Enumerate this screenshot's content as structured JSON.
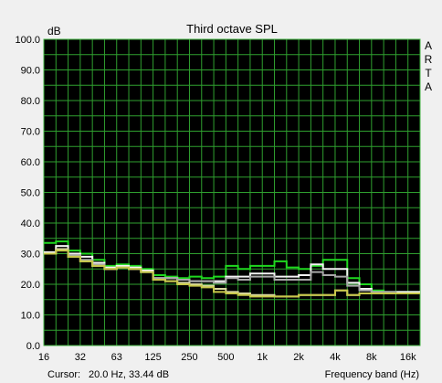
{
  "window": {
    "cursor_label": "Cursor:",
    "cursor_value": "20.0 Hz, 33.44 dB",
    "brand": "ARTA"
  },
  "chart_data": {
    "type": "line",
    "title": "Third octave SPL",
    "ylabel": "dB",
    "xlabel": "Frequency band (Hz)",
    "ylim": [
      0,
      100
    ],
    "y_ticks": [
      "0.0",
      "10.0",
      "20.0",
      "30.0",
      "40.0",
      "50.0",
      "60.0",
      "70.0",
      "80.0",
      "90.0",
      "100.0"
    ],
    "x_tick_labels": [
      "16",
      "32",
      "63",
      "125",
      "250",
      "500",
      "1k",
      "2k",
      "4k",
      "8k",
      "16k"
    ],
    "bands": [
      "20",
      "25",
      "31.5",
      "40",
      "50",
      "63",
      "80",
      "100",
      "125",
      "160",
      "200",
      "250",
      "315",
      "400",
      "500",
      "630",
      "800",
      "1k",
      "1.25k",
      "1.6k",
      "2k",
      "2.5k",
      "3.15k",
      "4k",
      "5k",
      "6.3k",
      "8k",
      "10k",
      "12.5k",
      "16k",
      "20k"
    ],
    "grid": true,
    "background": "#000000",
    "grid_color": "#2f9f2f",
    "series": [
      {
        "color": "#1fd81f",
        "values": [
          33.5,
          34,
          31,
          30,
          28,
          26,
          26.5,
          26,
          25,
          23,
          22.5,
          22,
          22.5,
          22,
          22.5,
          26,
          25,
          26,
          26,
          27.5,
          25.5,
          25,
          26,
          28,
          28,
          22,
          20,
          18,
          17.5,
          17.5,
          17.5
        ]
      },
      {
        "color": "#f4f4f4",
        "values": [
          30.5,
          32.5,
          30,
          29,
          27,
          25.5,
          26,
          25.5,
          24.5,
          22,
          22,
          21.5,
          21,
          21,
          21,
          22.5,
          22.5,
          23.5,
          23.5,
          22.5,
          22.5,
          23,
          26.5,
          25,
          25,
          20.5,
          18.5,
          17.5,
          17.5,
          17.5,
          17.5
        ]
      },
      {
        "color": "#a8a8a8",
        "values": [
          30,
          31.5,
          29.5,
          28,
          26.5,
          25,
          25.5,
          25,
          24,
          22,
          22,
          21.5,
          21,
          21,
          20.5,
          22,
          21.5,
          22.5,
          22.5,
          21.5,
          21.5,
          21.5,
          24,
          23,
          22.5,
          19.5,
          18,
          17.5,
          17.5,
          17,
          17
        ]
      },
      {
        "color": "#d8d8a0",
        "values": [
          30,
          31.5,
          29,
          27.5,
          26,
          25,
          25.5,
          25,
          24,
          21.5,
          21,
          20.5,
          20,
          19.5,
          18.5,
          17.5,
          17,
          16.5,
          16.5,
          16,
          16,
          16.5,
          16.5,
          16.5,
          18,
          16.5,
          17,
          17,
          17,
          17,
          17
        ]
      },
      {
        "color": "#c8c84a",
        "values": [
          30,
          31,
          29,
          27.5,
          26,
          25,
          25.5,
          25,
          24,
          21.5,
          21,
          20,
          19.5,
          19,
          17.5,
          17,
          16.5,
          16,
          16,
          16,
          16,
          16.5,
          16.5,
          16.5,
          18,
          16.5,
          17,
          17,
          17,
          17,
          17
        ]
      }
    ]
  }
}
